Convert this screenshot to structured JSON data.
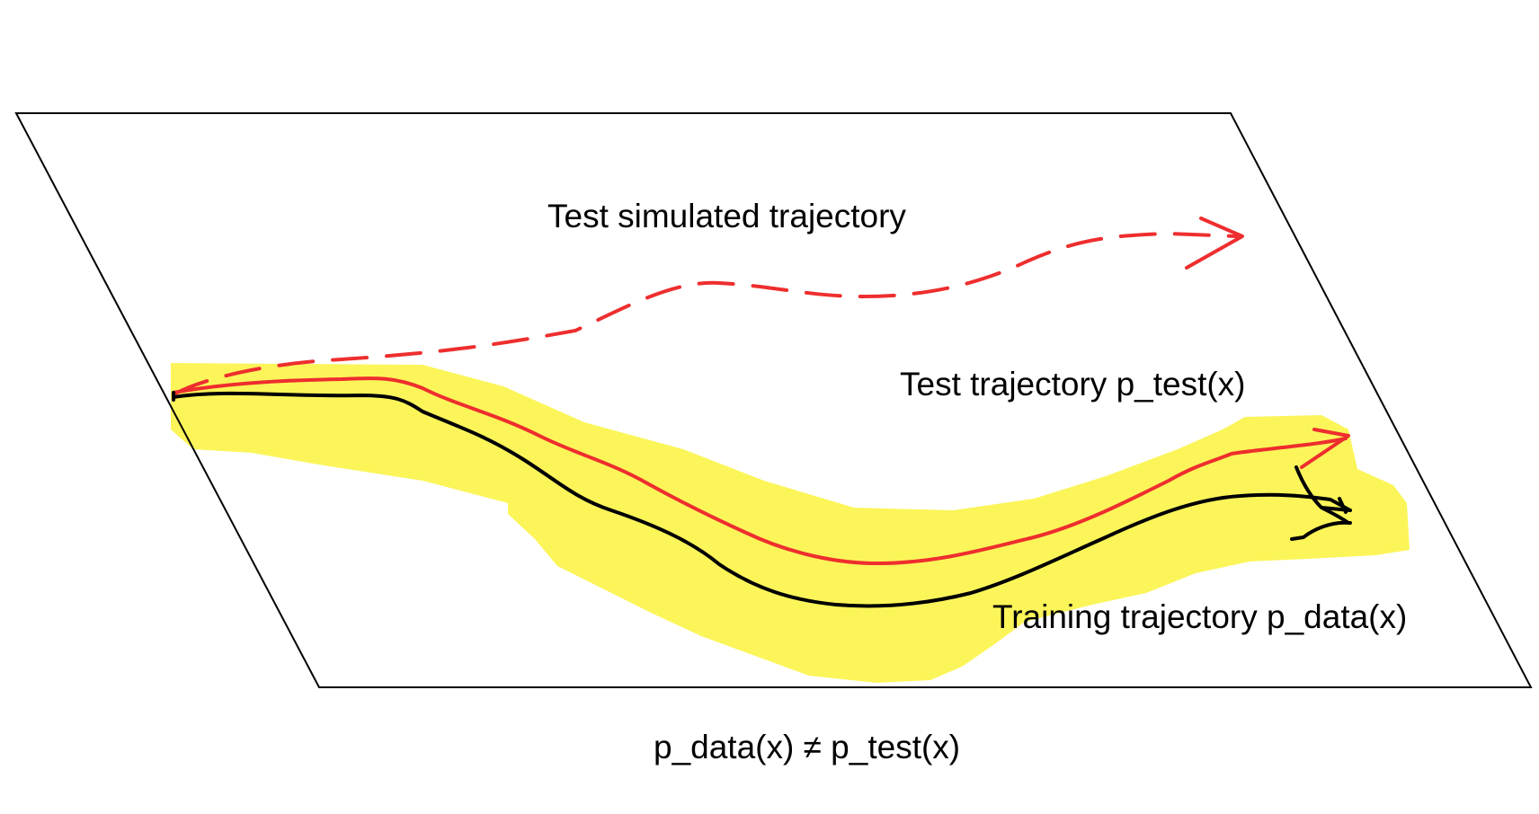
{
  "labels": {
    "test_simulated_trajectory": "Test simulated trajectory",
    "test_trajectory": "Test trajectory p_test(x)",
    "training_trajectory": "Training trajectory p_data(x)",
    "distribution_inequality": "p_data(x) ≠ p_test(x)"
  },
  "colors": {
    "plane_outline": "#000000",
    "training_band_highlight": "#fbf55a",
    "training_trajectory": "#000000",
    "test_trajectory": "#ee2e2e",
    "simulated_trajectory": "#ee2e2e",
    "background": "#ffffff"
  },
  "icons": {
    "test_trajectory_arrow": "arrow-head-icon",
    "simulated_trajectory_arrow": "arrow-head-icon",
    "training_trajectory_end": "fork-end-icon"
  }
}
